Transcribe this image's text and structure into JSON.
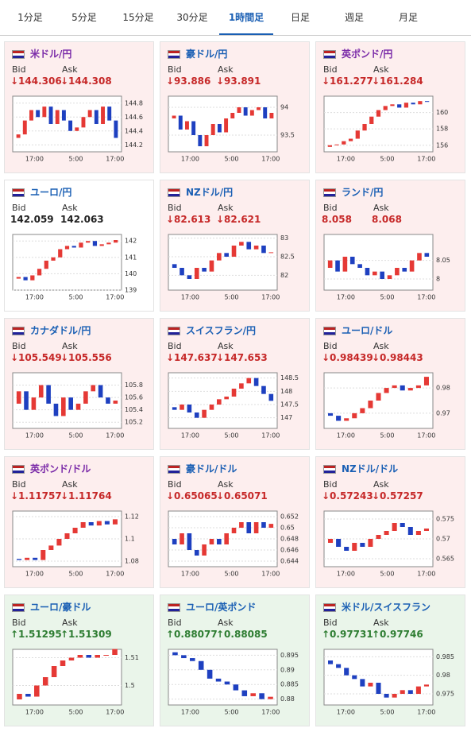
{
  "tabs": {
    "items": [
      "1分足",
      "5分足",
      "15分足",
      "30分足",
      "1時間足",
      "日足",
      "週足",
      "月足"
    ],
    "active": 4
  },
  "bid_label": "Bid",
  "ask_label": "Ask",
  "panels": [
    {
      "pair": "米ドル/円",
      "link_color": "#7a2aa8",
      "state": "down",
      "bid": "↓144.306",
      "ask": "↓144.308",
      "chart": {
        "ylim": [
          144.1,
          144.9
        ],
        "yticks": [
          144.8,
          144.6,
          144.4,
          144.2
        ],
        "xticks": [
          "17:00",
          "5:00",
          "17:00"
        ],
        "closes": [
          144.3,
          144.35,
          144.55,
          144.7,
          144.6,
          144.75,
          144.5,
          144.7,
          144.55,
          144.4,
          144.45,
          144.6,
          144.7,
          144.5,
          144.75,
          144.55,
          144.3
        ]
      }
    },
    {
      "pair": "豪ドル/円",
      "link_color": "#1a5fb4",
      "state": "down",
      "bid": "↓93.886",
      "ask": "↓93.891",
      "chart": {
        "ylim": [
          93.2,
          94.2
        ],
        "yticks": [
          94,
          93.5
        ],
        "xticks": [
          "17:00",
          "5:00",
          "17:00"
        ],
        "closes": [
          93.8,
          93.85,
          93.6,
          93.75,
          93.5,
          93.3,
          93.5,
          93.7,
          93.55,
          93.8,
          93.9,
          94.0,
          93.85,
          93.95,
          94.0,
          93.8,
          93.9
        ]
      }
    },
    {
      "pair": "英ポンド/円",
      "link_color": "#7a2aa8",
      "state": "down",
      "bid": "↓161.277",
      "ask": "↓161.284",
      "chart": {
        "ylim": [
          155.2,
          162
        ],
        "yticks": [
          160,
          158,
          156
        ],
        "xticks": [
          "17:00",
          "5:00",
          "17:00"
        ],
        "closes": [
          155.8,
          156,
          156.1,
          156.5,
          156.8,
          157.8,
          158.6,
          159.5,
          160.3,
          160.8,
          161.0,
          160.6,
          161.2,
          161.0,
          161.4,
          161.3
        ]
      }
    },
    {
      "pair": "ユーロ/円",
      "link_color": "#1a5fb4",
      "state": "none",
      "bid": "142.059",
      "ask": "142.063",
      "chart": {
        "ylim": [
          139,
          142.4
        ],
        "yticks": [
          142,
          141,
          140,
          139
        ],
        "xticks": [
          "17:00",
          "5:00",
          "17:00"
        ],
        "closes": [
          139.7,
          139.8,
          139.6,
          139.9,
          140.3,
          140.8,
          141.0,
          141.5,
          141.7,
          141.6,
          141.9,
          142.0,
          141.7,
          141.8,
          141.9,
          142.06
        ]
      }
    },
    {
      "pair": "NZドル/円",
      "link_color": "#1a5fb4",
      "state": "down",
      "bid": "↓82.613",
      "ask": "↓82.621",
      "chart": {
        "ylim": [
          81.6,
          83.1
        ],
        "yticks": [
          83,
          82.5,
          82
        ],
        "xticks": [
          "17:00",
          "5:00",
          "17:00"
        ],
        "closes": [
          82.3,
          82.2,
          82.0,
          81.9,
          82.2,
          82.1,
          82.4,
          82.6,
          82.5,
          82.8,
          82.9,
          82.7,
          82.8,
          82.6,
          82.62
        ]
      }
    },
    {
      "pair": "ランド/円",
      "link_color": "#1a5fb4",
      "state": "down",
      "bid": "8.058",
      "ask": "8.068",
      "chart": {
        "ylim": [
          7.97,
          8.12
        ],
        "yticks": [
          8.05,
          8
        ],
        "xticks": [
          "17:00",
          "5:00",
          "17:00"
        ],
        "closes": [
          8.03,
          8.05,
          8.02,
          8.06,
          8.04,
          8.03,
          8.01,
          8.02,
          8.0,
          8.01,
          8.03,
          8.02,
          8.05,
          8.07,
          8.06
        ]
      }
    },
    {
      "pair": "カナダドル/円",
      "link_color": "#1a5fb4",
      "state": "down",
      "bid": "↓105.549",
      "ask": "↓105.556",
      "chart": {
        "ylim": [
          105.1,
          106
        ],
        "yticks": [
          105.8,
          105.6,
          105.4,
          105.2
        ],
        "xticks": [
          "17:00",
          "5:00",
          "17:00"
        ],
        "closes": [
          105.5,
          105.7,
          105.4,
          105.6,
          105.8,
          105.5,
          105.3,
          105.6,
          105.4,
          105.5,
          105.7,
          105.8,
          105.6,
          105.5,
          105.55
        ]
      }
    },
    {
      "pair": "スイスフラン/円",
      "link_color": "#1a5fb4",
      "state": "down",
      "bid": "↓147.637",
      "ask": "↓147.653",
      "chart": {
        "ylim": [
          146.6,
          148.7
        ],
        "yticks": [
          148.5,
          148,
          147.5,
          147
        ],
        "xticks": [
          "17:00",
          "5:00",
          "17:00"
        ],
        "closes": [
          147.4,
          147.3,
          147.5,
          147.2,
          147.0,
          147.3,
          147.5,
          147.7,
          147.8,
          148.1,
          148.3,
          148.5,
          148.2,
          147.9,
          147.64
        ]
      }
    },
    {
      "pair": "ユーロ/ドル",
      "link_color": "#1a5fb4",
      "state": "down",
      "bid": "↓0.98439",
      "ask": "↓0.98443",
      "chart": {
        "ylim": [
          0.964,
          0.986
        ],
        "yticks": [
          0.98,
          0.97
        ],
        "xticks": [
          "17:00",
          "5:00",
          "17:00"
        ],
        "closes": [
          0.97,
          0.969,
          0.967,
          0.968,
          0.97,
          0.972,
          0.975,
          0.978,
          0.98,
          0.981,
          0.979,
          0.98,
          0.981,
          0.9844
        ]
      }
    },
    {
      "pair": "英ポンド/ドル",
      "link_color": "#7a2aa8",
      "state": "down",
      "bid": "↓1.11757",
      "ask": "↓1.11764",
      "chart": {
        "ylim": [
          1.075,
          1.125
        ],
        "yticks": [
          1.12,
          1.1,
          1.08
        ],
        "xticks": [
          "17:00",
          "5:00",
          "17:00"
        ],
        "closes": [
          1.082,
          1.081,
          1.083,
          1.081,
          1.09,
          1.094,
          1.1,
          1.105,
          1.11,
          1.115,
          1.112,
          1.116,
          1.113,
          1.1176
        ]
      }
    },
    {
      "pair": "豪ドル/ドル",
      "link_color": "#1a5fb4",
      "state": "down",
      "bid": "↓0.65065",
      "ask": "↓0.65071",
      "chart": {
        "ylim": [
          0.643,
          0.653
        ],
        "yticks": [
          0.652,
          0.65,
          0.648,
          0.646,
          0.644
        ],
        "xticks": [
          "17:00",
          "5:00",
          "17:00"
        ],
        "closes": [
          0.648,
          0.647,
          0.649,
          0.646,
          0.645,
          0.647,
          0.648,
          0.647,
          0.649,
          0.65,
          0.651,
          0.649,
          0.651,
          0.65,
          0.6507
        ]
      }
    },
    {
      "pair": "NZドル/ドル",
      "link_color": "#1a5fb4",
      "state": "down",
      "bid": "↓0.57243",
      "ask": "↓0.57257",
      "chart": {
        "ylim": [
          0.563,
          0.577
        ],
        "yticks": [
          0.575,
          0.57,
          0.565
        ],
        "xticks": [
          "17:00",
          "5:00",
          "17:00"
        ],
        "closes": [
          0.569,
          0.57,
          0.568,
          0.567,
          0.569,
          0.568,
          0.57,
          0.571,
          0.572,
          0.574,
          0.573,
          0.571,
          0.572,
          0.5726
        ]
      }
    },
    {
      "pair": "ユーロ/豪ドル",
      "link_color": "#1a5fb4",
      "state": "up",
      "bid": "↑1.51295",
      "ask": "↑1.51309",
      "chart": {
        "ylim": [
          1.493,
          1.513
        ],
        "yticks": [
          1.51,
          1.5
        ],
        "xticks": [
          "17:00",
          "5:00",
          "17:00"
        ],
        "closes": [
          1.495,
          1.497,
          1.496,
          1.5,
          1.503,
          1.507,
          1.509,
          1.51,
          1.511,
          1.51,
          1.511,
          1.511,
          1.5131
        ]
      }
    },
    {
      "pair": "ユーロ/英ポンド",
      "link_color": "#1a5fb4",
      "state": "up",
      "bid": "↑0.88077",
      "ask": "↑0.88085",
      "chart": {
        "ylim": [
          0.878,
          0.897
        ],
        "yticks": [
          0.895,
          0.89,
          0.885,
          0.88
        ],
        "xticks": [
          "17:00",
          "5:00",
          "17:00"
        ],
        "closes": [
          0.896,
          0.895,
          0.894,
          0.893,
          0.89,
          0.887,
          0.886,
          0.885,
          0.883,
          0.881,
          0.882,
          0.88,
          0.8808
        ]
      }
    },
    {
      "pair": "米ドル/スイスフラン",
      "link_color": "#1a5fb4",
      "state": "up",
      "bid": "↑0.97731",
      "ask": "↑0.97746",
      "chart": {
        "ylim": [
          0.972,
          0.987
        ],
        "yticks": [
          0.985,
          0.98,
          0.975
        ],
        "xticks": [
          "17:00",
          "5:00",
          "17:00"
        ],
        "closes": [
          0.984,
          0.983,
          0.982,
          0.98,
          0.979,
          0.977,
          0.978,
          0.975,
          0.974,
          0.975,
          0.976,
          0.975,
          0.977,
          0.9775
        ]
      }
    }
  ]
}
